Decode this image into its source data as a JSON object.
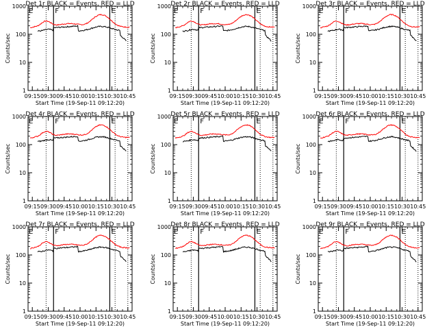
{
  "figure": {
    "background": "#ffffff"
  },
  "chart_data": [
    {
      "type": "line",
      "title": "Det 1r BLACK = Events, RED = LLD",
      "xlabel": "Start Time (19-Sep-11 09:12:20)",
      "ylabel": "Counts/sec",
      "yscale": "log",
      "ylim": [
        1,
        1000
      ],
      "xticks": [
        "09:15",
        "09:30",
        "09:45",
        "10:00",
        "10:15",
        "10:30",
        "10:45"
      ],
      "yticks": [
        "1",
        "10",
        "100",
        "1000"
      ],
      "markers": [
        {
          "label": "F",
          "at": "09:35"
        },
        {
          "label": "E",
          "at": "10:28"
        }
      ],
      "series": [
        {
          "name": "LLD",
          "color": "#ff0000",
          "kind": "lld",
          "step_at": "09:28"
        },
        {
          "name": "Events",
          "color": "#000000",
          "kind": "events"
        }
      ]
    },
    {
      "type": "line",
      "title": "Det 2r BLACK = Events, RED = LLD",
      "xlabel": "Start Time (19-Sep-11 09:12:20)",
      "ylabel": "Counts/sec",
      "yscale": "log",
      "ylim": [
        1,
        1000
      ],
      "xticks": [
        "09:15",
        "09:30",
        "09:45",
        "10:00",
        "10:15",
        "10:30",
        "10:45"
      ],
      "yticks": [
        "1",
        "10",
        "100",
        "1000"
      ],
      "markers": [
        {
          "label": "F",
          "at": "09:35"
        },
        {
          "label": "E",
          "at": "10:28"
        }
      ],
      "series": [
        {
          "name": "LLD",
          "color": "#ff0000",
          "kind": "lld",
          "step_at": "09:28"
        },
        {
          "name": "Events",
          "color": "#000000",
          "kind": "events"
        }
      ]
    },
    {
      "type": "line",
      "title": "Det 3r BLACK = Events, RED = LLD",
      "xlabel": "Start Time (19-Sep-11 09:12:20)",
      "ylabel": "Counts/sec",
      "yscale": "log",
      "ylim": [
        1,
        1000
      ],
      "xticks": [
        "09:15",
        "09:30",
        "09:45",
        "10:00",
        "10:15",
        "10:30",
        "10:45"
      ],
      "yticks": [
        "1",
        "10",
        "100",
        "1000"
      ],
      "markers": [
        {
          "label": "F",
          "at": "09:35"
        },
        {
          "label": "E",
          "at": "10:28"
        }
      ],
      "series": [
        {
          "name": "LLD",
          "color": "#ff0000",
          "kind": "lld",
          "step_at": "09:28"
        },
        {
          "name": "Events",
          "color": "#000000",
          "kind": "events"
        }
      ]
    },
    {
      "type": "line",
      "title": "Det 4r BLACK = Events, RED = LLD",
      "xlabel": "Start Time (19-Sep-11 09:12:20)",
      "ylabel": "Counts/sec",
      "yscale": "log",
      "ylim": [
        1,
        1000
      ],
      "xticks": [
        "09:15",
        "09:30",
        "09:45",
        "10:00",
        "10:15",
        "10:30",
        "10:45"
      ],
      "yticks": [
        "1",
        "10",
        "100",
        "1000"
      ],
      "markers": [
        {
          "label": "F",
          "at": "09:35"
        },
        {
          "label": "E",
          "at": "10:28"
        }
      ],
      "series": [
        {
          "name": "LLD",
          "color": "#ff0000",
          "kind": "lld",
          "step_at": "09:28"
        },
        {
          "name": "Events",
          "color": "#000000",
          "kind": "events"
        }
      ]
    },
    {
      "type": "line",
      "title": "Det 5r BLACK = Events, RED = LLD",
      "xlabel": "Start Time (19-Sep-11 09:12:20)",
      "ylabel": "Counts/sec",
      "yscale": "log",
      "ylim": [
        1,
        1000
      ],
      "xticks": [
        "09:15",
        "09:30",
        "09:45",
        "10:00",
        "10:15",
        "10:30",
        "10:45"
      ],
      "yticks": [
        "1",
        "10",
        "100",
        "1000"
      ],
      "markers": [
        {
          "label": "F",
          "at": "09:35"
        },
        {
          "label": "E",
          "at": "10:28"
        }
      ],
      "series": [
        {
          "name": "LLD",
          "color": "#ff0000",
          "kind": "lld",
          "step_at": "09:28"
        },
        {
          "name": "Events",
          "color": "#000000",
          "kind": "events"
        }
      ]
    },
    {
      "type": "line",
      "title": "Det 6r BLACK = Events, RED = LLD",
      "xlabel": "Start Time (19-Sep-11 09:12:20)",
      "ylabel": "Counts/sec",
      "yscale": "log",
      "ylim": [
        1,
        1000
      ],
      "xticks": [
        "09:15",
        "09:30",
        "09:45",
        "10:00",
        "10:15",
        "10:30",
        "10:45"
      ],
      "yticks": [
        "1",
        "10",
        "100",
        "1000"
      ],
      "markers": [
        {
          "label": "F",
          "at": "09:35"
        },
        {
          "label": "E",
          "at": "10:28"
        }
      ],
      "series": [
        {
          "name": "LLD",
          "color": "#ff0000",
          "kind": "lld",
          "step_at": "09:28"
        },
        {
          "name": "Events",
          "color": "#000000",
          "kind": "events"
        }
      ]
    },
    {
      "type": "line",
      "title": "Det 7r BLACK = Events, RED = LLD",
      "xlabel": "Start Time (19-Sep-11 09:12:20)",
      "ylabel": "Counts/sec",
      "yscale": "log",
      "ylim": [
        1,
        1000
      ],
      "xticks": [
        "09:15",
        "09:30",
        "09:45",
        "10:00",
        "10:15",
        "10:30",
        "10:45"
      ],
      "yticks": [
        "1",
        "10",
        "100",
        "1000"
      ],
      "markers": [
        {
          "label": "F",
          "at": "09:35"
        },
        {
          "label": "E",
          "at": "10:28"
        }
      ],
      "series": [
        {
          "name": "LLD",
          "color": "#ff0000",
          "kind": "lld",
          "step_at": "09:28"
        },
        {
          "name": "Events",
          "color": "#000000",
          "kind": "events"
        }
      ]
    },
    {
      "type": "line",
      "title": "Det 8r BLACK = Events, RED = LLD",
      "xlabel": "Start Time (19-Sep-11 09:12:20)",
      "ylabel": "Counts/sec",
      "yscale": "log",
      "ylim": [
        1,
        1000
      ],
      "xticks": [
        "09:15",
        "09:30",
        "09:45",
        "10:00",
        "10:15",
        "10:30",
        "10:45"
      ],
      "yticks": [
        "1",
        "10",
        "100",
        "1000"
      ],
      "markers": [
        {
          "label": "F",
          "at": "09:35"
        },
        {
          "label": "E",
          "at": "10:28"
        }
      ],
      "series": [
        {
          "name": "LLD",
          "color": "#ff0000",
          "kind": "lld",
          "step_at": "09:28"
        },
        {
          "name": "Events",
          "color": "#000000",
          "kind": "events"
        }
      ]
    },
    {
      "type": "line",
      "title": "Det 9r BLACK = Events, RED = LLD",
      "xlabel": "Start Time (19-Sep-11 09:12:20)",
      "ylabel": "Counts/sec",
      "yscale": "log",
      "ylim": [
        1,
        1000
      ],
      "xticks": [
        "09:15",
        "09:30",
        "09:45",
        "10:00",
        "10:15",
        "10:30",
        "10:45"
      ],
      "yticks": [
        "1",
        "10",
        "100",
        "1000"
      ],
      "markers": [
        {
          "label": "F",
          "at": "09:35"
        },
        {
          "label": "E",
          "at": "10:28"
        }
      ],
      "series": [
        {
          "name": "LLD",
          "color": "#ff0000",
          "kind": "lld",
          "step_at": "09:28"
        },
        {
          "name": "Events",
          "color": "#000000",
          "kind": "events"
        }
      ]
    }
  ]
}
